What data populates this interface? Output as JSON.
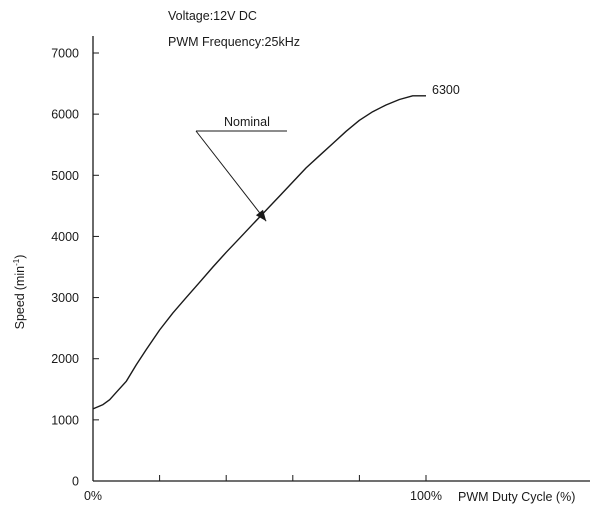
{
  "chart_data": {
    "type": "line",
    "conditions": [
      "Voltage:12V DC",
      "PWM Frequency:25kHz"
    ],
    "xlabel": "PWM Duty Cycle (%)",
    "ylabel": "Speed",
    "ylabel_unit_base": "min",
    "ylabel_unit_sup": "-1",
    "xlim": [
      0,
      100
    ],
    "ylim": [
      0,
      7000
    ],
    "x_tick_labels": [
      {
        "x": 0,
        "label": "0%"
      },
      {
        "x": 100,
        "label": "100%"
      }
    ],
    "x_minor_ticks": [
      20,
      40,
      60,
      80
    ],
    "yticks": [
      0,
      1000,
      2000,
      3000,
      4000,
      5000,
      6000,
      7000
    ],
    "grid": false,
    "series": [
      {
        "name": "Nominal",
        "x": [
          0,
          3,
          5,
          7,
          10,
          13,
          16,
          20,
          24,
          28,
          32,
          36,
          40,
          44,
          48,
          52,
          56,
          60,
          64,
          68,
          72,
          76,
          80,
          84,
          88,
          92,
          96,
          100
        ],
        "y": [
          1180,
          1250,
          1330,
          1450,
          1630,
          1900,
          2150,
          2470,
          2750,
          3000,
          3250,
          3500,
          3740,
          3970,
          4200,
          4430,
          4660,
          4890,
          5120,
          5320,
          5520,
          5720,
          5900,
          6040,
          6150,
          6240,
          6300,
          6300
        ],
        "end_label": "6300"
      }
    ],
    "annotation": {
      "text": "Nominal",
      "target_x": 52,
      "target_y": 4250
    }
  }
}
